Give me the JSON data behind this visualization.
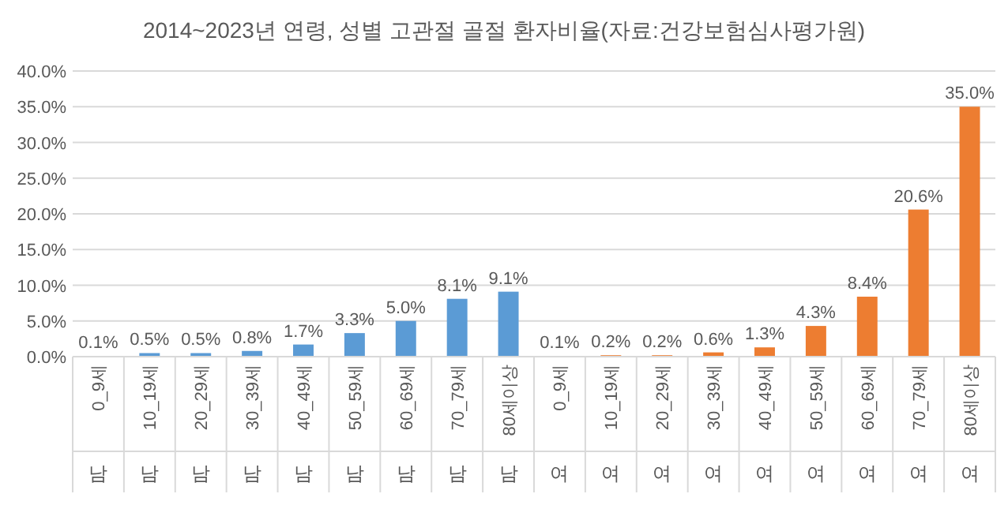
{
  "chart_data": {
    "type": "bar",
    "title": "2014~2023년 연령, 성별 고관절 골절 환자비율(자료:건강보험심사평가원)",
    "categories": [
      "0_9세",
      "10_19세",
      "20_29세",
      "30_39세",
      "40_49세",
      "50_59세",
      "60_69세",
      "70_79세",
      "80세이상",
      "0_9세",
      "10_19세",
      "20_29세",
      "30_39세",
      "40_49세",
      "50_59세",
      "60_69세",
      "70_79세",
      "80세이상"
    ],
    "annotations": [
      "남",
      "남",
      "남",
      "남",
      "남",
      "남",
      "남",
      "남",
      "남",
      "여",
      "여",
      "여",
      "여",
      "여",
      "여",
      "여",
      "여",
      "여"
    ],
    "values": [
      0.1,
      0.5,
      0.5,
      0.8,
      1.7,
      3.3,
      5.0,
      8.1,
      9.1,
      0.1,
      0.2,
      0.2,
      0.6,
      1.3,
      4.3,
      8.4,
      20.6,
      35.0
    ],
    "value_labels": [
      "0.1%",
      "0.5%",
      "0.5%",
      "0.8%",
      "1.7%",
      "3.3%",
      "5.0%",
      "8.1%",
      "9.1%",
      "0.1%",
      "0.2%",
      "0.2%",
      "0.6%",
      "1.3%",
      "4.3%",
      "8.4%",
      "20.6%",
      "35.0%"
    ],
    "colors": [
      "#5b9bd5",
      "#5b9bd5",
      "#5b9bd5",
      "#5b9bd5",
      "#5b9bd5",
      "#5b9bd5",
      "#5b9bd5",
      "#5b9bd5",
      "#5b9bd5",
      "#ed7d31",
      "#ed7d31",
      "#ed7d31",
      "#ed7d31",
      "#ed7d31",
      "#ed7d31",
      "#ed7d31",
      "#ed7d31",
      "#ed7d31"
    ],
    "ylim": [
      0,
      40
    ],
    "yticks": [
      {
        "value": 0,
        "label": "0.0%"
      },
      {
        "value": 5,
        "label": "5.0%"
      },
      {
        "value": 10,
        "label": "10.0%"
      },
      {
        "value": 15,
        "label": "15.0%"
      },
      {
        "value": 20,
        "label": "20.0%"
      },
      {
        "value": 25,
        "label": "25.0%"
      },
      {
        "value": 30,
        "label": "30.0%"
      },
      {
        "value": 35,
        "label": "35.0%"
      },
      {
        "value": 40,
        "label": "40.0%"
      }
    ],
    "grid": "y"
  }
}
